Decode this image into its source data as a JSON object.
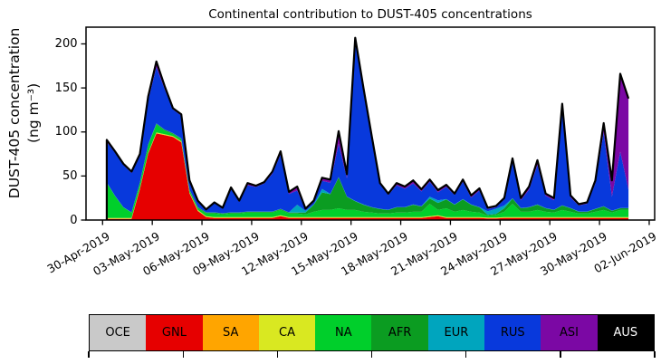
{
  "title": "Continental contribution to DUST-405 concentrations",
  "y_axis": {
    "label_line1": "DUST-405 concentration",
    "label_line2": "(ng m⁻³)",
    "ticks": [
      0,
      50,
      100,
      150,
      200
    ]
  },
  "x_axis": {
    "tick_labels": [
      "30-Apr-2019",
      "03-May-2019",
      "06-May-2019",
      "09-May-2019",
      "12-May-2019",
      "15-May-2019",
      "18-May-2019",
      "21-May-2019",
      "24-May-2019",
      "27-May-2019",
      "30-May-2019",
      "02-Jun-2019"
    ]
  },
  "legend": {
    "entries": [
      {
        "label": "OCE",
        "color": "#C9C9C9",
        "text_color": "#000000"
      },
      {
        "label": "GNL",
        "color": "#E60000",
        "text_color": "#000000"
      },
      {
        "label": "SA",
        "color": "#FFA500",
        "text_color": "#000000"
      },
      {
        "label": "CA",
        "color": "#D9E821",
        "text_color": "#000000"
      },
      {
        "label": "NA",
        "color": "#00CF2B",
        "text_color": "#000000"
      },
      {
        "label": "AFR",
        "color": "#0B9C21",
        "text_color": "#000000"
      },
      {
        "label": "EUR",
        "color": "#00A5BE",
        "text_color": "#000000"
      },
      {
        "label": "RUS",
        "color": "#0839DC",
        "text_color": "#000000"
      },
      {
        "label": "ASI",
        "color": "#7B08A4",
        "text_color": "#000000"
      },
      {
        "label": "AUS",
        "color": "#000000",
        "text_color": "#FFFFFF"
      }
    ]
  },
  "chart_data": {
    "type": "area",
    "stacked": true,
    "title": "Continental contribution to DUST-405 concentrations",
    "xlabel": "",
    "ylabel": "DUST-405 concentration (ng m-3)",
    "ylim": [
      0,
      219
    ],
    "grid": false,
    "x_start": "30-Apr-2019 06:00",
    "x_step_hours": 12,
    "n_points": 64,
    "x_tick_labels": [
      "30-Apr-2019",
      "03-May-2019",
      "06-May-2019",
      "09-May-2019",
      "12-May-2019",
      "15-May-2019",
      "18-May-2019",
      "21-May-2019",
      "24-May-2019",
      "27-May-2019",
      "30-May-2019",
      "02-Jun-2019"
    ],
    "outline_color": "#000000",
    "series": [
      {
        "name": "OCE",
        "color": "#C9C9C9",
        "constant": 0.3
      },
      {
        "name": "GNL",
        "color": "#E60000",
        "values": [
          1,
          1,
          1,
          1,
          35,
          75,
          98,
          96,
          94,
          88,
          30,
          10,
          3,
          2,
          2,
          2,
          2,
          2,
          2,
          2,
          2,
          4,
          2,
          2,
          2,
          2,
          2,
          2,
          2,
          2,
          2,
          2,
          2,
          2,
          2,
          2,
          2,
          2,
          2,
          3,
          4,
          2,
          2,
          2,
          2,
          2,
          1.5,
          1.5,
          2,
          2,
          2,
          2,
          2,
          2,
          2,
          2,
          2,
          2,
          2,
          2,
          2,
          2,
          2,
          2
        ]
      },
      {
        "name": "SA",
        "color": "#FFA500",
        "constant": 0.3
      },
      {
        "name": "CA",
        "color": "#D9E821",
        "constant": 0.8
      },
      {
        "name": "NA",
        "color": "#00CF2B",
        "values": [
          40,
          25,
          12,
          6,
          6,
          9,
          9,
          4,
          2,
          2,
          2,
          2,
          3,
          4,
          3,
          4,
          4,
          5,
          5,
          5,
          5,
          6,
          4,
          4,
          3,
          6,
          8,
          8,
          10,
          8,
          8,
          6,
          5,
          4,
          4,
          5,
          5,
          6,
          6,
          14,
          6,
          10,
          6,
          8,
          6,
          5,
          2,
          3,
          6,
          15,
          6,
          6,
          8,
          6,
          5,
          8,
          6,
          4,
          4,
          6,
          8,
          5,
          8,
          8
        ]
      },
      {
        "name": "AFR",
        "color": "#0B9C21",
        "values": [
          0,
          0,
          0,
          0,
          0,
          0,
          1,
          1,
          1,
          1,
          1,
          1,
          1,
          1,
          1,
          1,
          1,
          1,
          1,
          1,
          1,
          1,
          1,
          1,
          2,
          8,
          20,
          18,
          35,
          15,
          10,
          8,
          6,
          5,
          4,
          6,
          6,
          8,
          6,
          6,
          8,
          10,
          8,
          12,
          8,
          6,
          1,
          1,
          4,
          6,
          4,
          5,
          6,
          4,
          3,
          5,
          4,
          2,
          2,
          3,
          4,
          2,
          2,
          2
        ]
      },
      {
        "name": "EUR",
        "color": "#00A5BE",
        "values": [
          0.3,
          0.3,
          0.3,
          0.3,
          0.3,
          0.3,
          0.3,
          0.3,
          0.3,
          0.3,
          0.3,
          0.3,
          0.3,
          0.3,
          0.3,
          0.3,
          0.3,
          0.3,
          0.3,
          0.3,
          0.3,
          0.3,
          0.3,
          9,
          2,
          0.3,
          4,
          0.3,
          0.3,
          0.3,
          0.3,
          0.3,
          0.3,
          0.3,
          0.3,
          0.3,
          0.3,
          0.3,
          0.3,
          2,
          3,
          0.3,
          0.3,
          0.3,
          0.3,
          0.3,
          4,
          6,
          3,
          0.3,
          0.3,
          0.3,
          0.3,
          0.3,
          0.3,
          0.3,
          0.3,
          0.3,
          0.3,
          0.3,
          0.3,
          0.3,
          0.3,
          0.3
        ]
      },
      {
        "name": "RUS",
        "color": "#0839DC",
        "values": [
          45.8,
          48.8,
          47.8,
          44.8,
          29.8,
          49.8,
          63.8,
          45.8,
          26.8,
          25.8,
          8.8,
          6.3,
          2.3,
          10.3,
          5.3,
          26.8,
          11.8,
          29.8,
          27.8,
          31.8,
          42.8,
          61.8,
          20.8,
          16.1,
          1.1,
          2.8,
          9.1,
          12.8,
          37.8,
          20.8,
          181.8,
          129.8,
          77.8,
          27.8,
          16.8,
          24.8,
          20.8,
          23.8,
          16.8,
          17.1,
          9.1,
          13.8,
          10.8,
          19.8,
          7.8,
          18.8,
          2.6,
          1.6,
          7.1,
          41.8,
          8.8,
          19.8,
          44.8,
          13.8,
          10.8,
          111.8,
          11.8,
          6.8,
          8.8,
          28.8,
          83.8,
          15.8,
          63.8,
          20.8
        ]
      },
      {
        "name": "ASI",
        "color": "#7B08A4",
        "values": [
          2,
          1,
          1,
          1,
          2,
          4,
          6,
          3,
          1,
          1,
          1,
          0.5,
          0.5,
          0.5,
          0.5,
          1,
          1,
          2,
          1,
          1,
          2,
          3,
          2,
          4,
          1,
          1,
          3,
          3,
          14,
          4,
          3,
          2,
          2,
          1,
          1,
          2,
          2,
          3,
          2,
          2,
          2,
          2,
          1,
          2,
          2,
          2,
          1,
          1,
          1,
          3,
          2,
          3,
          5,
          2,
          2,
          3,
          2,
          1,
          1,
          3,
          10,
          18,
          88,
          103
        ]
      },
      {
        "name": "AUS",
        "color": "#000000",
        "constant": 0.5
      }
    ]
  }
}
